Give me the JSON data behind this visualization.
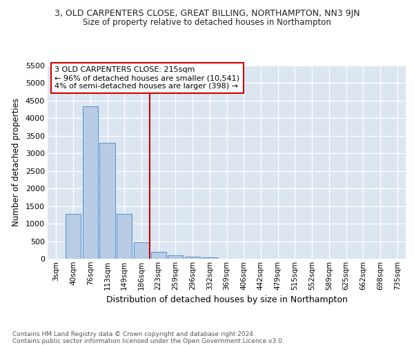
{
  "title1": "3, OLD CARPENTERS CLOSE, GREAT BILLING, NORTHAMPTON, NN3 9JN",
  "title2": "Size of property relative to detached houses in Northampton",
  "xlabel": "Distribution of detached houses by size in Northampton",
  "ylabel": "Number of detached properties",
  "bar_labels": [
    "3sqm",
    "40sqm",
    "76sqm",
    "113sqm",
    "149sqm",
    "186sqm",
    "223sqm",
    "259sqm",
    "296sqm",
    "332sqm",
    "369sqm",
    "406sqm",
    "442sqm",
    "479sqm",
    "515sqm",
    "552sqm",
    "589sqm",
    "625sqm",
    "662sqm",
    "698sqm",
    "735sqm"
  ],
  "bar_values": [
    0,
    1270,
    4350,
    3300,
    1270,
    480,
    200,
    100,
    60,
    35,
    0,
    0,
    0,
    0,
    0,
    0,
    0,
    0,
    0,
    0,
    0
  ],
  "bar_color": "#b8cce4",
  "bar_edge_color": "#5b9bd5",
  "vline_x": 6,
  "vline_color": "#cc0000",
  "ylim": [
    0,
    5500
  ],
  "yticks": [
    0,
    500,
    1000,
    1500,
    2000,
    2500,
    3000,
    3500,
    4000,
    4500,
    5000,
    5500
  ],
  "annotation_text": "3 OLD CARPENTERS CLOSE: 215sqm\n← 96% of detached houses are smaller (10,541)\n4% of semi-detached houses are larger (398) →",
  "annotation_box_facecolor": "#ffffff",
  "annotation_box_edgecolor": "#cc0000",
  "footer": "Contains HM Land Registry data © Crown copyright and database right 2024.\nContains public sector information licensed under the Open Government Licence v3.0.",
  "fig_bg_color": "#ffffff",
  "plot_bg_color": "#dce6f1",
  "grid_color": "#ffffff",
  "title_color": "#222222",
  "footer_color": "#555555"
}
